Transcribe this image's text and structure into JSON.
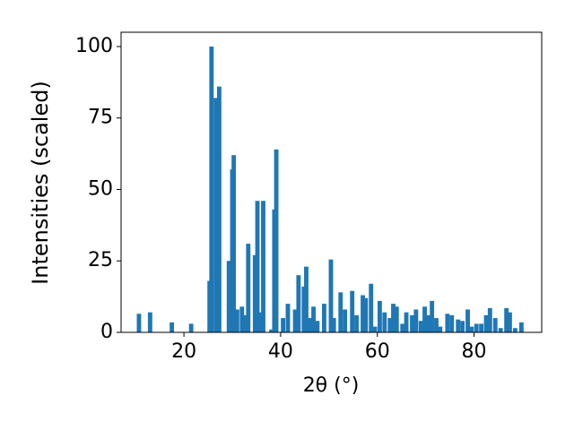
{
  "chart_data": {
    "type": "bar",
    "xlabel": "2θ (°)",
    "ylabel": "Intensities (scaled)",
    "color": "#1f77b4",
    "x": [
      10.7,
      13,
      17.5,
      21.5,
      25.3,
      25.7,
      26.6,
      27.3,
      29.3,
      30,
      30.3,
      31,
      32,
      32.7,
      33.3,
      34.7,
      35.2,
      35.9,
      36.4,
      38.1,
      38.7,
      39.1,
      40.5,
      41.5,
      43,
      43.7,
      44.8,
      45.3,
      46,
      46.8,
      47.6,
      49,
      50.4,
      51,
      52.4,
      53.3,
      54.8,
      55.7,
      57,
      57.6,
      58.7,
      59.5,
      60.5,
      61.5,
      62.6,
      63.3,
      64,
      65.2,
      66,
      67.2,
      68,
      69,
      69.8,
      70.5,
      71.3,
      72.2,
      73,
      74.5,
      75.4,
      76.7,
      77.6,
      78.7,
      79.5,
      80.5,
      81.5,
      82.5,
      83.3,
      84.4,
      85.5,
      86.7,
      87.4,
      88.5,
      89.8
    ],
    "values": [
      6.5,
      7,
      3.5,
      3,
      18,
      100,
      82,
      86,
      25,
      57,
      62,
      8,
      9,
      6,
      31,
      27,
      46,
      7,
      46,
      1,
      43,
      64,
      5,
      10,
      8,
      20,
      16,
      23,
      5,
      9,
      4,
      10,
      25.5,
      5,
      14,
      8,
      14.5,
      6,
      13,
      12,
      17,
      2,
      11,
      7,
      5,
      10,
      9,
      3,
      7,
      6,
      8,
      4,
      9,
      6,
      11,
      5,
      2,
      6.5,
      6,
      4.5,
      4,
      8,
      2,
      3,
      3,
      6,
      8.5,
      5,
      1.5,
      8.5,
      7,
      1.5,
      3.5
    ],
    "xlim": [
      7,
      94
    ],
    "ylim": [
      0,
      105
    ],
    "xticks": [
      20,
      40,
      60,
      80
    ],
    "yticks": [
      0,
      25,
      50,
      75,
      100
    ]
  }
}
